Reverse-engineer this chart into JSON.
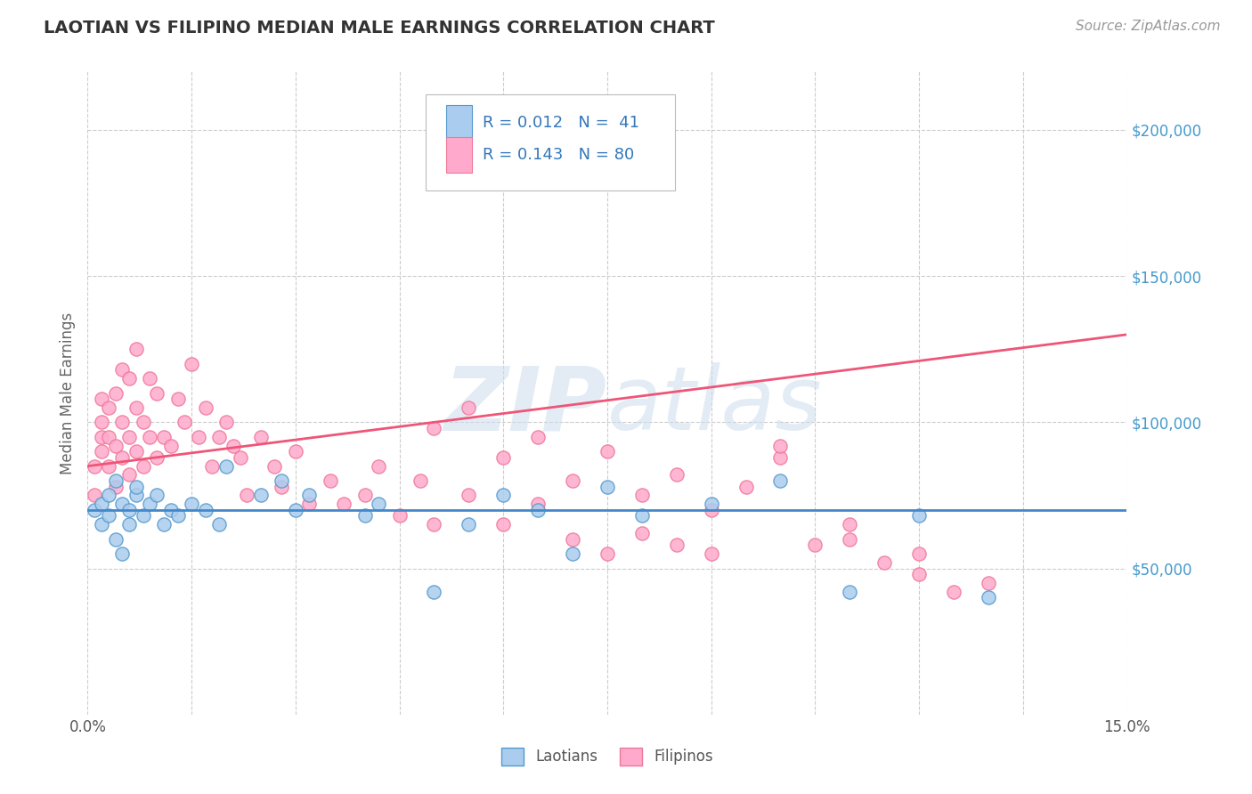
{
  "title": "LAOTIAN VS FILIPINO MEDIAN MALE EARNINGS CORRELATION CHART",
  "source_text": "Source: ZipAtlas.com",
  "ylabel": "Median Male Earnings",
  "xlim": [
    0.0,
    0.15
  ],
  "ylim": [
    0,
    220000
  ],
  "ytick_positions": [
    0,
    50000,
    100000,
    150000,
    200000
  ],
  "right_ytick_labels": [
    "",
    "$50,000",
    "$100,000",
    "$150,000",
    "$200,000"
  ],
  "grid_color": "#cccccc",
  "background_color": "#ffffff",
  "laotian_color": "#aaccee",
  "filipino_color": "#ffaacc",
  "laotian_edge_color": "#5599cc",
  "filipino_edge_color": "#ee7799",
  "laotian_line_color": "#4488cc",
  "filipino_line_color": "#ee5577",
  "watermark_color": "#ccdded",
  "laotian_label": "Laotians",
  "filipino_label": "Filipinos",
  "laotian_line_y0": 70000,
  "laotian_line_y1": 70000,
  "filipino_line_y0": 85000,
  "filipino_line_y1": 130000,
  "lao_x": [
    0.001,
    0.002,
    0.002,
    0.003,
    0.003,
    0.004,
    0.004,
    0.005,
    0.005,
    0.006,
    0.006,
    0.007,
    0.007,
    0.008,
    0.009,
    0.01,
    0.011,
    0.012,
    0.013,
    0.015,
    0.017,
    0.019,
    0.02,
    0.025,
    0.028,
    0.03,
    0.032,
    0.04,
    0.042,
    0.05,
    0.055,
    0.06,
    0.065,
    0.07,
    0.075,
    0.08,
    0.09,
    0.1,
    0.11,
    0.12,
    0.13
  ],
  "lao_y": [
    70000,
    72000,
    65000,
    75000,
    68000,
    80000,
    60000,
    72000,
    55000,
    70000,
    65000,
    75000,
    78000,
    68000,
    72000,
    75000,
    65000,
    70000,
    68000,
    72000,
    70000,
    65000,
    85000,
    75000,
    80000,
    70000,
    75000,
    68000,
    72000,
    42000,
    65000,
    75000,
    70000,
    55000,
    78000,
    68000,
    72000,
    80000,
    42000,
    68000,
    40000
  ],
  "fil_x": [
    0.001,
    0.001,
    0.002,
    0.002,
    0.002,
    0.002,
    0.003,
    0.003,
    0.003,
    0.004,
    0.004,
    0.004,
    0.005,
    0.005,
    0.005,
    0.006,
    0.006,
    0.006,
    0.007,
    0.007,
    0.007,
    0.008,
    0.008,
    0.009,
    0.009,
    0.01,
    0.01,
    0.011,
    0.012,
    0.013,
    0.014,
    0.015,
    0.016,
    0.017,
    0.018,
    0.019,
    0.02,
    0.021,
    0.022,
    0.023,
    0.025,
    0.027,
    0.028,
    0.03,
    0.032,
    0.035,
    0.037,
    0.04,
    0.042,
    0.045,
    0.048,
    0.05,
    0.055,
    0.06,
    0.065,
    0.07,
    0.075,
    0.08,
    0.085,
    0.09,
    0.1,
    0.105,
    0.11,
    0.115,
    0.12,
    0.125,
    0.13,
    0.05,
    0.055,
    0.06,
    0.065,
    0.07,
    0.075,
    0.08,
    0.085,
    0.09,
    0.095,
    0.1,
    0.11,
    0.12
  ],
  "fil_y": [
    75000,
    85000,
    90000,
    95000,
    100000,
    108000,
    85000,
    95000,
    105000,
    78000,
    92000,
    110000,
    88000,
    100000,
    118000,
    82000,
    95000,
    115000,
    90000,
    105000,
    125000,
    85000,
    100000,
    95000,
    115000,
    88000,
    110000,
    95000,
    92000,
    108000,
    100000,
    120000,
    95000,
    105000,
    85000,
    95000,
    100000,
    92000,
    88000,
    75000,
    95000,
    85000,
    78000,
    90000,
    72000,
    80000,
    72000,
    75000,
    85000,
    68000,
    80000,
    65000,
    75000,
    65000,
    72000,
    60000,
    55000,
    62000,
    58000,
    55000,
    88000,
    58000,
    65000,
    52000,
    48000,
    42000,
    45000,
    98000,
    105000,
    88000,
    95000,
    80000,
    90000,
    75000,
    82000,
    70000,
    78000,
    92000,
    60000,
    55000
  ]
}
